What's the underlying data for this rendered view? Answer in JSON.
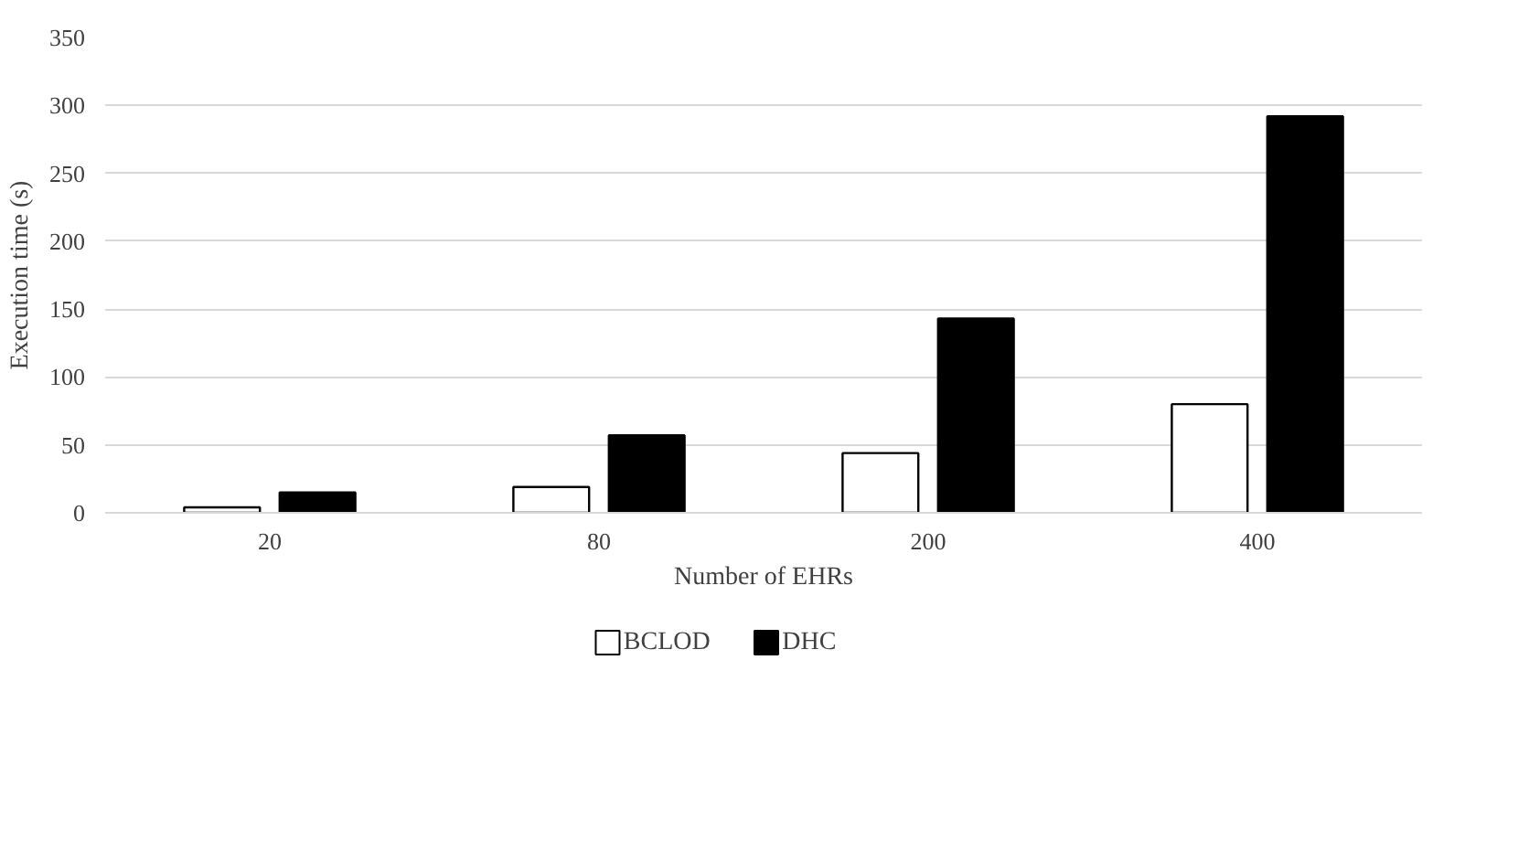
{
  "chart_data": {
    "type": "bar",
    "xlabel": "Number of EHRs",
    "ylabel": "Execution time (s)",
    "categories": [
      "20",
      "80",
      "200",
      "400"
    ],
    "series": [
      {
        "name": "BCLOD",
        "color": "#ffffff",
        "values": [
          4,
          19,
          44,
          80
        ]
      },
      {
        "name": "DHC",
        "color": "#000000",
        "values": [
          15,
          57,
          143,
          292
        ]
      }
    ],
    "ylim": [
      0,
      350
    ],
    "yticks": [
      0,
      50,
      100,
      150,
      200,
      250,
      300,
      350
    ],
    "grid": "y",
    "legend": "bottom"
  }
}
